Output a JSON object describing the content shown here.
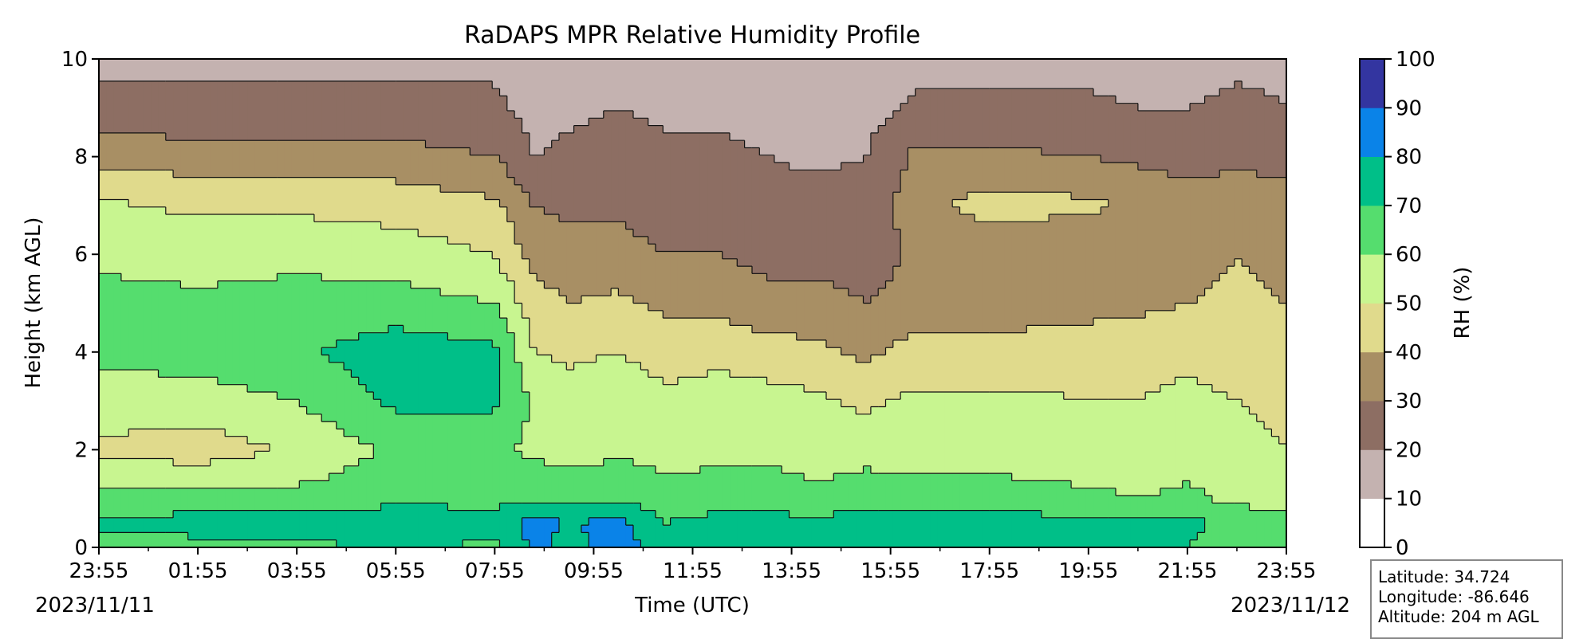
{
  "chart_data": {
    "type": "heatmap",
    "subtype": "filled-contour",
    "title": "RaDAPS MPR Relative Humidity Profile",
    "xlabel": "Time (UTC)",
    "ylabel": "Height (km AGL)",
    "x_tick_labels": [
      "23:55",
      "01:55",
      "03:55",
      "05:55",
      "07:55",
      "09:55",
      "11:55",
      "13:55",
      "15:55",
      "17:55",
      "19:55",
      "21:55",
      "23:55"
    ],
    "x_range_hours": [
      0,
      24
    ],
    "start_date": "2023/11/11",
    "end_date": "2023/11/12",
    "ylim": [
      0,
      10
    ],
    "y_ticks": [
      0,
      2,
      4,
      6,
      8,
      10
    ],
    "colorbar": {
      "label": "RH (%)",
      "levels": [
        0,
        10,
        20,
        30,
        40,
        50,
        60,
        70,
        80,
        90,
        100
      ],
      "colors": [
        "#ffffff",
        "#c4b2b0",
        "#8d6e63",
        "#a88f64",
        "#e0da8c",
        "#c8f590",
        "#55dd6e",
        "#00bf88",
        "#0a83e8",
        "#3335a0"
      ]
    },
    "rh_profile_hours": [
      0,
      2,
      4,
      6,
      8,
      8.8,
      9.5,
      10.5,
      11.5,
      12.5,
      13.5,
      14.5,
      15.5,
      16.5,
      18,
      20,
      21,
      22,
      23,
      24
    ],
    "rh_profile_heights_km": [
      0,
      0.5,
      1,
      2,
      3,
      4,
      5,
      6,
      7,
      8,
      9,
      10
    ],
    "rh_profile_values": [
      [
        65,
        72,
        64,
        48,
        56,
        62,
        64,
        57,
        52,
        36,
        23,
        18
      ],
      [
        67,
        74,
        64,
        44,
        56,
        64,
        62,
        56,
        48,
        35,
        22,
        18
      ],
      [
        68,
        74,
        63,
        52,
        60,
        68,
        64,
        57,
        48,
        35,
        22,
        18
      ],
      [
        70,
        80,
        66,
        62,
        72,
        76,
        64,
        55,
        46,
        34,
        22,
        18
      ],
      [
        68,
        76,
        66,
        62,
        72,
        72,
        60,
        50,
        42,
        30,
        22,
        18
      ],
      [
        82,
        84,
        68,
        58,
        58,
        50,
        44,
        36,
        30,
        20,
        16,
        14
      ],
      [
        76,
        80,
        66,
        56,
        54,
        48,
        40,
        34,
        28,
        22,
        18,
        15
      ],
      [
        86,
        82,
        68,
        58,
        56,
        50,
        42,
        34,
        28,
        24,
        20,
        16
      ],
      [
        72,
        70,
        64,
        56,
        52,
        46,
        38,
        30,
        24,
        22,
        18,
        16
      ],
      [
        78,
        74,
        64,
        58,
        56,
        46,
        38,
        30,
        26,
        22,
        18,
        16
      ],
      [
        80,
        76,
        64,
        58,
        54,
        44,
        34,
        26,
        22,
        20,
        17,
        15
      ],
      [
        76,
        72,
        62,
        56,
        52,
        42,
        34,
        26,
        22,
        19,
        16,
        14
      ],
      [
        80,
        76,
        66,
        56,
        48,
        38,
        30,
        24,
        22,
        20,
        16,
        14
      ],
      [
        72,
        74,
        64,
        56,
        52,
        44,
        34,
        32,
        36,
        32,
        22,
        16
      ],
      [
        72,
        74,
        64,
        56,
        52,
        44,
        34,
        32,
        44,
        32,
        22,
        16
      ],
      [
        72,
        74,
        62,
        54,
        50,
        46,
        36,
        32,
        42,
        30,
        22,
        16
      ],
      [
        70,
        72,
        60,
        54,
        50,
        46,
        38,
        34,
        38,
        28,
        20,
        16
      ],
      [
        70,
        74,
        62,
        56,
        52,
        48,
        40,
        36,
        34,
        26,
        20,
        16
      ],
      [
        64,
        66,
        58,
        52,
        50,
        46,
        42,
        40,
        36,
        28,
        22,
        18
      ],
      [
        60,
        62,
        56,
        50,
        48,
        44,
        40,
        38,
        34,
        26,
        20,
        18
      ]
    ]
  },
  "location": {
    "latitude": "Latitude: 34.724",
    "longitude": "Longitude: -86.646",
    "altitude": "Altitude: 204 m AGL"
  }
}
